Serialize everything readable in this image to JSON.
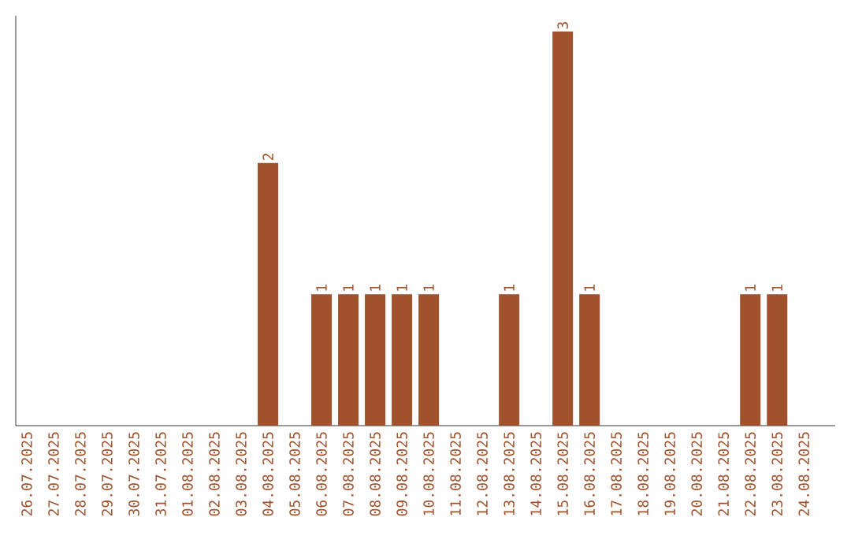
{
  "chart_data": {
    "type": "bar",
    "categories": [
      "26.07.2025",
      "27.07.2025",
      "28.07.2025",
      "29.07.2025",
      "30.07.2025",
      "31.07.2025",
      "01.08.2025",
      "02.08.2025",
      "03.08.2025",
      "04.08.2025",
      "05.08.2025",
      "06.08.2025",
      "07.08.2025",
      "08.08.2025",
      "09.08.2025",
      "10.08.2025",
      "11.08.2025",
      "12.08.2025",
      "13.08.2025",
      "14.08.2025",
      "15.08.2025",
      "16.08.2025",
      "17.08.2025",
      "18.08.2025",
      "19.08.2025",
      "20.08.2025",
      "21.08.2025",
      "22.08.2025",
      "23.08.2025",
      "24.08.2025"
    ],
    "values": [
      0,
      0,
      0,
      0,
      0,
      0,
      0,
      0,
      0,
      2,
      0,
      1,
      1,
      1,
      1,
      1,
      0,
      0,
      1,
      0,
      3,
      1,
      0,
      0,
      0,
      0,
      0,
      1,
      1,
      0
    ],
    "value_labels": [
      null,
      null,
      null,
      null,
      null,
      null,
      null,
      null,
      null,
      "2",
      null,
      "1",
      "1",
      "1",
      "1",
      "1",
      null,
      null,
      "1",
      null,
      "3",
      "1",
      null,
      null,
      null,
      null,
      null,
      "1",
      "1",
      null
    ],
    "color": "#a0522d",
    "ylim": [
      0,
      3.12
    ],
    "tick_labels": "x",
    "grid": false
  }
}
